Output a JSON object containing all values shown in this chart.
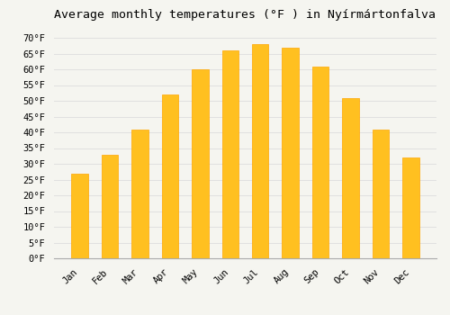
{
  "title": "Average monthly temperatures (°F ) in Nyírmártonfalva",
  "months": [
    "Jan",
    "Feb",
    "Mar",
    "Apr",
    "May",
    "Jun",
    "Jul",
    "Aug",
    "Sep",
    "Oct",
    "Nov",
    "Dec"
  ],
  "values": [
    27,
    33,
    41,
    52,
    60,
    66,
    68,
    67,
    61,
    51,
    41,
    32
  ],
  "bar_color": "#FFC020",
  "bar_edge_color": "#FFA500",
  "background_color": "#f5f5f0",
  "grid_color": "#e0e0e0",
  "yticks": [
    0,
    5,
    10,
    15,
    20,
    25,
    30,
    35,
    40,
    45,
    50,
    55,
    60,
    65,
    70
  ],
  "ylim": [
    0,
    73
  ],
  "title_fontsize": 9.5,
  "tick_fontsize": 7.5,
  "font_family": "monospace"
}
